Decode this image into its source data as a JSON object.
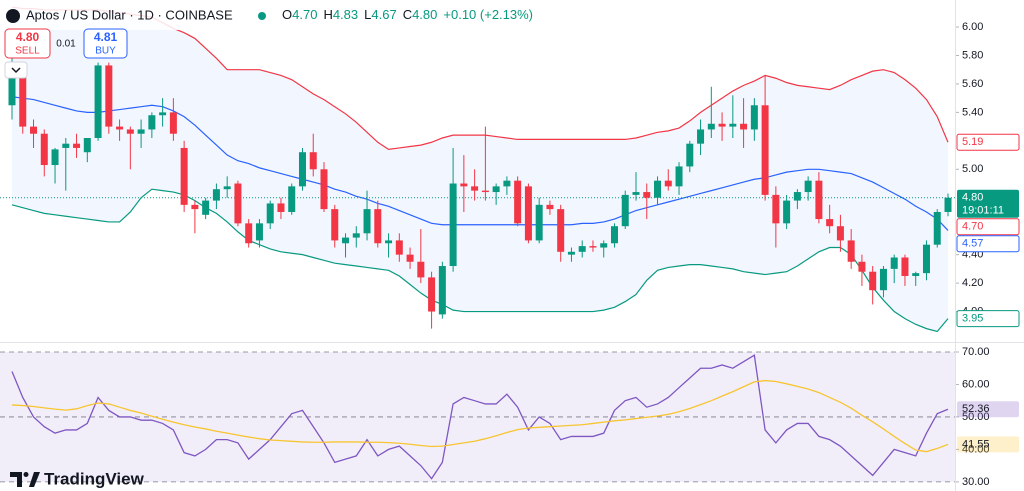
{
  "header": {
    "ohlc": [
      {
        "key": "O",
        "value": "4.70"
      },
      {
        "key": "H",
        "value": "4.83"
      },
      {
        "key": "L",
        "value": "4.67"
      },
      {
        "key": "C",
        "value": "4.80"
      }
    ],
    "change": "+0.10 (+2.13%)",
    "sell": {
      "price": "4.80",
      "label": "SELL"
    },
    "spread": "0.01",
    "buy": {
      "price": "4.81",
      "label": "BUY"
    },
    "brand": "TradingView"
  },
  "chart_data": {
    "type": "candlestick",
    "title": "Aptos / US Dollar · 1D · COINBASE",
    "up_color": "#089981",
    "down_color": "#f23645",
    "open": [
      5.45,
      5.7,
      5.3,
      5.25,
      5.03,
      5.15,
      5.18,
      5.12,
      5.22,
      5.73,
      5.3,
      5.28,
      5.25,
      5.28,
      5.38,
      5.4,
      5.15,
      4.75,
      4.68,
      4.78,
      4.86,
      4.9,
      4.62,
      4.5,
      4.62,
      4.76,
      4.7,
      4.88,
      5.12,
      5.0,
      4.72,
      4.48,
      4.52,
      4.55,
      4.72,
      4.48,
      4.5,
      4.4,
      4.35,
      4.24,
      3.98,
      4.32,
      4.9,
      4.88,
      4.85,
      4.84,
      4.88,
      4.92,
      4.88,
      4.5,
      4.75,
      4.72,
      4.4,
      4.42,
      4.46,
      4.45,
      4.48,
      4.6,
      4.82,
      4.84,
      4.8,
      4.92,
      4.88,
      5.02,
      5.18,
      5.28,
      5.32,
      5.3,
      5.32,
      5.28,
      5.45,
      4.82,
      4.62,
      4.78,
      4.84,
      4.92,
      4.65,
      4.6,
      4.5,
      4.35,
      4.28,
      4.15,
      4.3,
      4.38,
      4.25,
      4.27,
      4.47,
      4.7
    ],
    "high": [
      5.95,
      5.72,
      5.35,
      5.28,
      5.15,
      5.22,
      5.25,
      5.22,
      5.75,
      5.75,
      5.35,
      5.3,
      5.35,
      5.4,
      5.5,
      5.5,
      5.2,
      4.78,
      4.8,
      4.9,
      4.95,
      4.92,
      4.65,
      4.65,
      4.78,
      4.8,
      4.9,
      5.15,
      5.25,
      5.05,
      4.75,
      4.55,
      4.6,
      4.85,
      4.78,
      4.55,
      4.55,
      4.45,
      4.58,
      4.28,
      4.35,
      5.15,
      5.1,
      5.0,
      5.3,
      4.9,
      4.95,
      4.95,
      4.9,
      4.8,
      4.78,
      4.75,
      4.45,
      4.5,
      4.5,
      4.5,
      4.62,
      4.85,
      4.98,
      4.9,
      4.95,
      5.0,
      5.05,
      5.2,
      5.35,
      5.58,
      5.4,
      5.52,
      5.5,
      5.5,
      5.66,
      4.88,
      4.82,
      4.86,
      4.95,
      4.98,
      4.75,
      4.68,
      4.58,
      4.4,
      4.32,
      4.32,
      4.4,
      4.4,
      4.28,
      4.5,
      4.72,
      4.83
    ],
    "low": [
      5.35,
      5.25,
      5.15,
      4.95,
      4.9,
      4.85,
      5.08,
      5.05,
      5.2,
      5.25,
      5.2,
      5.0,
      5.15,
      5.22,
      5.3,
      5.2,
      4.7,
      4.55,
      4.65,
      4.72,
      4.8,
      4.6,
      4.45,
      4.45,
      4.58,
      4.65,
      4.68,
      4.85,
      4.95,
      4.7,
      4.45,
      4.38,
      4.45,
      4.5,
      4.45,
      4.38,
      4.35,
      4.3,
      4.2,
      3.88,
      3.95,
      4.28,
      4.7,
      4.78,
      4.78,
      4.75,
      4.82,
      4.6,
      4.48,
      4.48,
      4.68,
      4.35,
      4.35,
      4.38,
      4.42,
      4.38,
      4.45,
      4.58,
      4.78,
      4.65,
      4.75,
      4.85,
      4.82,
      4.98,
      5.1,
      5.22,
      5.2,
      5.22,
      5.15,
      5.2,
      4.78,
      4.45,
      4.58,
      4.72,
      4.78,
      4.62,
      4.55,
      4.42,
      4.3,
      4.18,
      4.05,
      4.1,
      4.2,
      4.18,
      4.18,
      4.22,
      4.45,
      4.67
    ],
    "close": [
      5.7,
      5.3,
      5.25,
      5.03,
      5.14,
      5.18,
      5.15,
      5.22,
      5.73,
      5.3,
      5.28,
      5.25,
      5.28,
      5.38,
      5.4,
      5.25,
      4.75,
      4.72,
      4.78,
      4.86,
      4.88,
      4.62,
      4.48,
      4.62,
      4.76,
      4.7,
      4.88,
      5.12,
      5.0,
      4.72,
      4.5,
      4.52,
      4.55,
      4.72,
      4.48,
      4.5,
      4.4,
      4.35,
      4.24,
      4.0,
      4.32,
      4.9,
      4.88,
      4.85,
      4.84,
      4.88,
      4.92,
      4.62,
      4.5,
      4.75,
      4.72,
      4.42,
      4.42,
      4.46,
      4.45,
      4.48,
      4.6,
      4.82,
      4.84,
      4.8,
      4.92,
      4.88,
      5.02,
      5.18,
      5.28,
      5.32,
      5.3,
      5.32,
      5.28,
      5.45,
      4.82,
      4.62,
      4.78,
      4.84,
      4.92,
      4.65,
      4.6,
      4.5,
      4.35,
      4.28,
      4.15,
      4.3,
      4.38,
      4.25,
      4.27,
      4.47,
      4.7,
      4.8
    ],
    "bands": [
      {
        "color": "#f23645",
        "values": [
          6.14,
          6.13,
          6.13,
          6.12,
          6.12,
          6.12,
          6.12,
          6.12,
          6.12,
          6.11,
          6.1,
          6.09,
          6.08,
          6.07,
          6.03,
          5.99,
          5.96,
          5.92,
          5.85,
          5.78,
          5.7,
          5.7,
          5.7,
          5.7,
          5.68,
          5.66,
          5.63,
          5.58,
          5.53,
          5.49,
          5.44,
          5.39,
          5.33,
          5.26,
          5.19,
          5.14,
          5.15,
          5.16,
          5.17,
          5.19,
          5.22,
          5.24,
          5.24,
          5.24,
          5.24,
          5.23,
          5.22,
          5.21,
          5.21,
          5.21,
          5.21,
          5.21,
          5.21,
          5.21,
          5.21,
          5.21,
          5.21,
          5.21,
          5.22,
          5.24,
          5.26,
          5.27,
          5.29,
          5.34,
          5.4,
          5.45,
          5.5,
          5.55,
          5.59,
          5.62,
          5.66,
          5.64,
          5.61,
          5.59,
          5.58,
          5.57,
          5.56,
          5.59,
          5.63,
          5.66,
          5.69,
          5.7,
          5.68,
          5.63,
          5.57,
          5.49,
          5.37,
          5.19
        ]
      },
      {
        "color": "#2962ff",
        "values": [
          5.51,
          5.5,
          5.49,
          5.47,
          5.45,
          5.43,
          5.41,
          5.4,
          5.4,
          5.41,
          5.42,
          5.43,
          5.44,
          5.45,
          5.44,
          5.41,
          5.37,
          5.31,
          5.24,
          5.17,
          5.1,
          5.06,
          5.04,
          5.01,
          4.99,
          4.97,
          4.95,
          4.93,
          4.91,
          4.89,
          4.86,
          4.84,
          4.81,
          4.79,
          4.76,
          4.74,
          4.71,
          4.68,
          4.65,
          4.62,
          4.61,
          4.61,
          4.61,
          4.61,
          4.61,
          4.61,
          4.61,
          4.61,
          4.61,
          4.61,
          4.61,
          4.61,
          4.61,
          4.62,
          4.62,
          4.63,
          4.65,
          4.68,
          4.71,
          4.73,
          4.75,
          4.77,
          4.79,
          4.81,
          4.83,
          4.85,
          4.87,
          4.89,
          4.91,
          4.93,
          4.94,
          4.96,
          4.98,
          4.99,
          5.0,
          5.0,
          4.99,
          4.98,
          4.97,
          4.94,
          4.91,
          4.87,
          4.83,
          4.79,
          4.74,
          4.7,
          4.65,
          4.57
        ]
      },
      {
        "color": "#089981",
        "values": [
          4.75,
          4.73,
          4.71,
          4.69,
          4.68,
          4.67,
          4.66,
          4.65,
          4.64,
          4.63,
          4.63,
          4.7,
          4.8,
          4.86,
          4.85,
          4.84,
          4.82,
          4.78,
          4.73,
          4.69,
          4.63,
          4.56,
          4.5,
          4.47,
          4.44,
          4.42,
          4.41,
          4.4,
          4.38,
          4.36,
          4.34,
          4.33,
          4.32,
          4.31,
          4.3,
          4.29,
          4.25,
          4.19,
          4.13,
          4.08,
          4.05,
          4.01,
          4.0,
          4.0,
          4.0,
          4.0,
          4.0,
          4.0,
          4.0,
          4.0,
          4.0,
          4.0,
          4.0,
          4.0,
          4.0,
          4.01,
          4.03,
          4.07,
          4.12,
          4.22,
          4.29,
          4.31,
          4.32,
          4.33,
          4.33,
          4.32,
          4.31,
          4.3,
          4.28,
          4.27,
          4.26,
          4.27,
          4.28,
          4.32,
          4.37,
          4.42,
          4.45,
          4.45,
          4.4,
          4.29,
          4.17,
          4.08,
          4.0,
          3.95,
          3.91,
          3.88,
          3.86,
          3.95
        ]
      }
    ],
    "band_fill": "rgba(41,98,255,0.06)",
    "ylim": [
      3.8,
      6.19
    ],
    "yticks": [
      {
        "value": 4.0,
        "label": "4.00"
      },
      {
        "value": 4.2,
        "label": "4.20"
      },
      {
        "value": 4.4,
        "label": "4.40"
      },
      {
        "value": 5.0,
        "label": "5.00"
      },
      {
        "value": 5.4,
        "label": "5.40"
      },
      {
        "value": 5.6,
        "label": "5.60"
      },
      {
        "value": 5.8,
        "label": "5.80"
      },
      {
        "value": 6.0,
        "label": "6.00"
      }
    ],
    "badges": [
      {
        "value": 5.19,
        "label": "5.19",
        "color": "#f23645",
        "style": "outline"
      },
      {
        "value": 4.8,
        "label": "4.80",
        "sub": "19:01:11",
        "color": "#089981",
        "style": "filled"
      },
      {
        "value": 4.7,
        "label": "4.70",
        "color": "#f23645",
        "style": "outline"
      },
      {
        "value": 4.57,
        "label": "4.57",
        "color": "#2962ff",
        "style": "outline"
      },
      {
        "value": 3.95,
        "label": "3.95",
        "color": "#089981",
        "style": "outline"
      }
    ],
    "rsi": {
      "ylim": [
        27.5,
        72.15
      ],
      "yticks": [
        {
          "value": 30,
          "label": "30.00"
        },
        {
          "value": 40,
          "label": "40.00"
        },
        {
          "value": 50,
          "label": "50.00"
        },
        {
          "value": 60,
          "label": "60.00"
        },
        {
          "value": 70,
          "label": "70.00"
        }
      ],
      "levels": [
        70,
        50,
        30
      ],
      "fill": "rgba(126,87,194,0.1)",
      "series": [
        {
          "color": "#7e57c2",
          "values": [
            64,
            56,
            50,
            47,
            45,
            46,
            46,
            48,
            56,
            52,
            50,
            50,
            49,
            49,
            48,
            46,
            39,
            38,
            40,
            43,
            43,
            42,
            37,
            40,
            43,
            47,
            51,
            52,
            47,
            42,
            36,
            37,
            38,
            43,
            38,
            40,
            41,
            38,
            35,
            31,
            36,
            54,
            56,
            55,
            54,
            54,
            57,
            53,
            46,
            50,
            48,
            43,
            44,
            44,
            44,
            45,
            52,
            55,
            56,
            53,
            54,
            56,
            59,
            62,
            65,
            65,
            66,
            65,
            67,
            69,
            46,
            42,
            46,
            48,
            48,
            44,
            43,
            41,
            38,
            35,
            32,
            36,
            40,
            39,
            38,
            45,
            51,
            52.36
          ]
        },
        {
          "color": "#f7c530",
          "values": [
            53.7,
            53.5,
            53.2,
            52.8,
            52.4,
            52.1,
            52.5,
            53.5,
            54.3,
            54.0,
            53.0,
            52.0,
            51.2,
            50.2,
            49.3,
            48.4,
            47.6,
            46.9,
            46.3,
            45.6,
            45.0,
            44.4,
            43.8,
            43.3,
            42.9,
            42.7,
            42.5,
            42.3,
            42.2,
            42.2,
            42.3,
            42.3,
            42.3,
            42.2,
            42.2,
            42.1,
            41.9,
            41.6,
            41.2,
            40.9,
            41.0,
            41.5,
            42.0,
            42.5,
            43.3,
            44.2,
            45.2,
            46.1,
            46.6,
            46.8,
            47.0,
            47.2,
            47.4,
            47.6,
            48.0,
            48.4,
            48.8,
            49.1,
            49.5,
            49.9,
            50.3,
            50.8,
            51.6,
            52.6,
            53.8,
            55.0,
            56.4,
            57.8,
            59.3,
            60.8,
            61.2,
            60.9,
            60.2,
            59.4,
            58.6,
            57.5,
            56.0,
            54.5,
            52.7,
            50.5,
            48.5,
            46.3,
            44.0,
            41.8,
            39.8,
            39.3,
            40.3,
            41.55
          ]
        }
      ],
      "badges": [
        {
          "value": 52.36,
          "label": "52.36",
          "color": "#7e57c2",
          "style": "soft"
        },
        {
          "value": 41.55,
          "label": "41.55",
          "color": "#f7c530",
          "style": "soft"
        }
      ]
    }
  }
}
